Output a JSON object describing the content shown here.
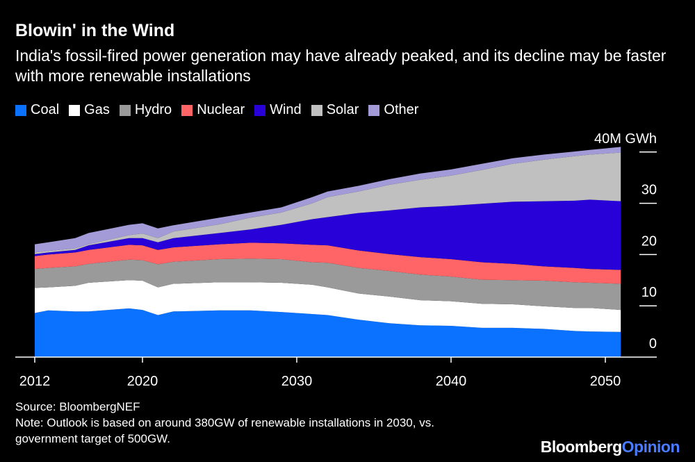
{
  "chart_data": {
    "type": "area",
    "stacked": true,
    "title": "Blowin' in the Wind",
    "subtitle": "India's fossil-fired power generation may have already peaked, and its decline may be faster with more renewable installations",
    "unit_label": "40M GWh",
    "ylim": [
      0,
      40
    ],
    "yticks": [
      "0",
      "10",
      "20",
      "30"
    ],
    "xticks": [
      "2012",
      "2020",
      "2030",
      "2040",
      "2050"
    ],
    "legend_position": "top-left",
    "x": [
      2012,
      2013,
      2015,
      2016,
      2019,
      2020,
      2021,
      2022,
      2025,
      2027,
      2029,
      2031,
      2032,
      2034,
      2036,
      2038,
      2040,
      2042,
      2044,
      2046,
      2048,
      2049,
      2051
    ],
    "series": [
      {
        "name": "Coal",
        "color": "#0a72ff",
        "values": [
          8.6,
          9.1,
          8.9,
          8.9,
          9.5,
          9.2,
          8.2,
          8.9,
          9.1,
          9.1,
          8.8,
          8.4,
          8.2,
          7.3,
          6.6,
          6.2,
          6.1,
          5.7,
          5.7,
          5.5,
          5.1,
          5.0,
          4.9
        ]
      },
      {
        "name": "Gas",
        "color": "#ffffff",
        "values": [
          4.9,
          4.5,
          5.0,
          5.6,
          5.5,
          5.7,
          5.4,
          5.4,
          5.5,
          5.5,
          5.7,
          5.7,
          5.4,
          5.1,
          5.2,
          4.9,
          4.8,
          4.7,
          4.6,
          4.4,
          4.5,
          4.6,
          4.3
        ]
      },
      {
        "name": "Hydro",
        "color": "#9a9a9a",
        "values": [
          3.7,
          3.8,
          3.8,
          3.7,
          4.0,
          4.0,
          4.5,
          4.3,
          4.5,
          4.6,
          4.6,
          4.4,
          4.8,
          5.0,
          5.0,
          5.0,
          4.8,
          4.7,
          4.7,
          5.0,
          5.0,
          4.9,
          5.1
        ]
      },
      {
        "name": "Nuclear",
        "color": "#ff6466",
        "values": [
          2.5,
          2.6,
          2.7,
          2.7,
          2.9,
          2.9,
          2.8,
          2.8,
          2.9,
          3.1,
          3.1,
          3.4,
          3.4,
          3.4,
          3.3,
          3.4,
          3.4,
          3.4,
          3.2,
          2.8,
          2.8,
          2.7,
          2.7
        ]
      },
      {
        "name": "Wind",
        "color": "#2800d8",
        "values": [
          0.4,
          0.4,
          0.5,
          0.9,
          1.3,
          1.4,
          1.5,
          1.8,
          2.2,
          2.6,
          3.6,
          5.0,
          5.5,
          7.3,
          8.5,
          9.7,
          10.4,
          11.4,
          12.1,
          12.7,
          13.1,
          13.5,
          13.4
        ]
      },
      {
        "name": "Solar",
        "color": "#c0c0c0",
        "values": [
          0.3,
          0.3,
          0.3,
          0.2,
          0.6,
          0.9,
          0.8,
          1.3,
          1.7,
          2.3,
          2.4,
          3.1,
          3.9,
          4.2,
          5.0,
          5.4,
          5.9,
          6.6,
          7.4,
          8.1,
          8.7,
          8.8,
          9.5
        ]
      },
      {
        "name": "Other",
        "color": "#a29bd8",
        "values": [
          1.6,
          1.7,
          2.0,
          2.2,
          2.0,
          2.0,
          1.9,
          1.2,
          1.3,
          1.0,
          1.0,
          1.2,
          1.1,
          1.1,
          1.1,
          1.2,
          1.2,
          1.2,
          1.1,
          1.0,
          0.9,
          0.9,
          1.1
        ]
      }
    ]
  },
  "footer": {
    "source": "Source: BloombergNEF",
    "note_line1": "Note: Outlook is based on around 380GW of renewable installations in 2030, vs.",
    "note_line2": "government target of 500GW."
  },
  "logo": {
    "part1": "Bloomberg",
    "part2": "Opinion"
  }
}
